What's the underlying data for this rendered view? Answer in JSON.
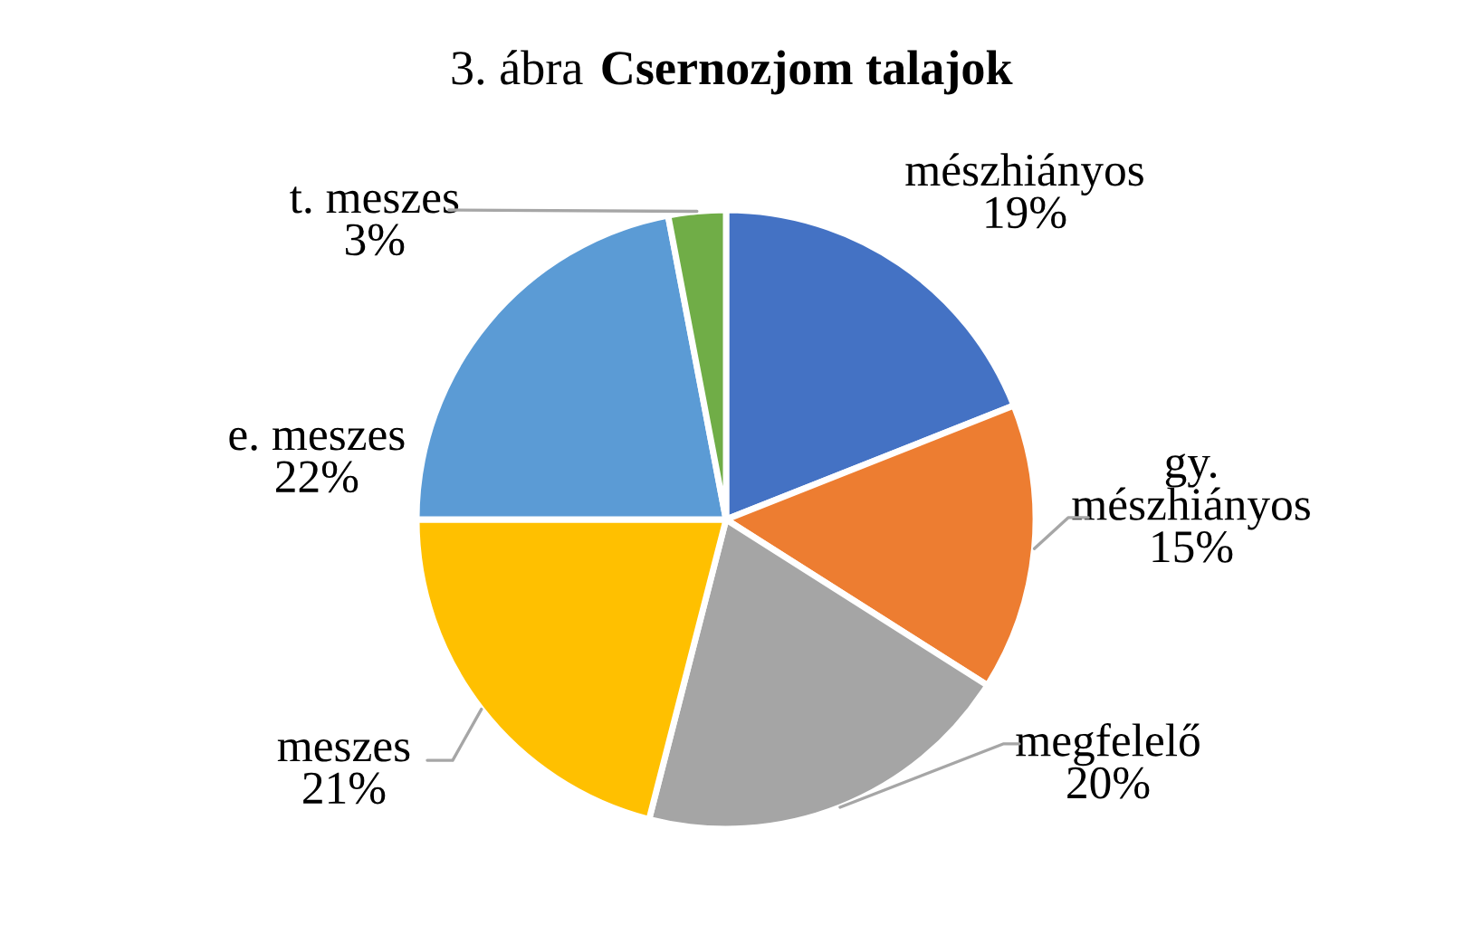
{
  "chart_data": {
    "type": "pie",
    "title": "Csernozjom talajok",
    "annotations": [
      "3. ábra"
    ],
    "categories": [
      "mészhiányos",
      "gy. mészhiányos",
      "megfelelő",
      "meszes",
      "e. meszes",
      "t. meszes"
    ],
    "values": [
      19,
      15,
      20,
      21,
      22,
      3
    ],
    "value_labels": [
      "19%",
      "15%",
      "20%",
      "21%",
      "22%",
      "3%"
    ],
    "colors": [
      "#4472c4",
      "#ed7d31",
      "#a5a5a5",
      "#ffc000",
      "#5b9bd5",
      "#70ad47"
    ]
  }
}
